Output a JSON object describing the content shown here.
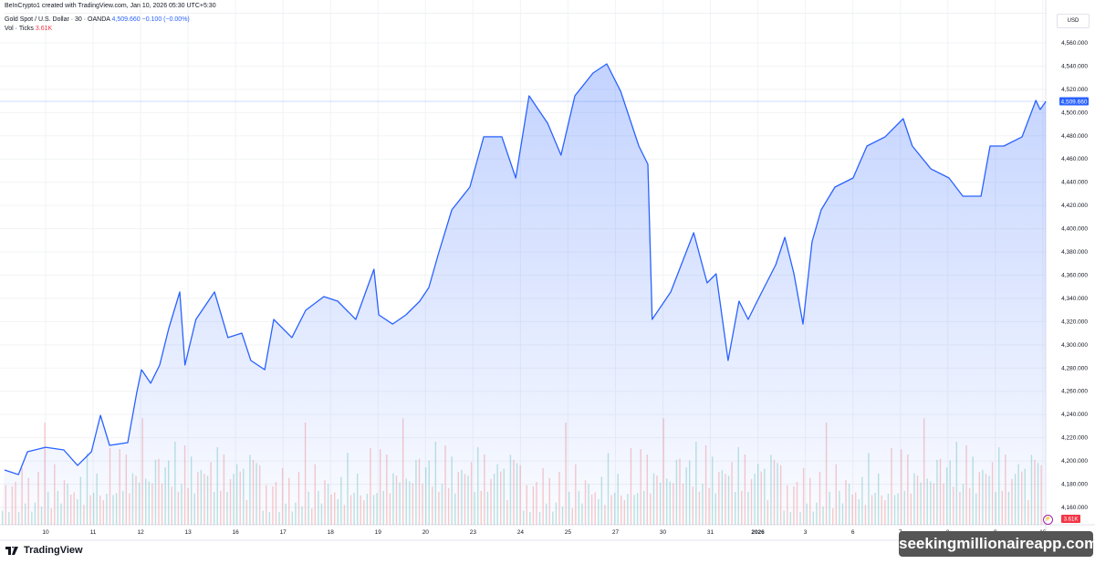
{
  "attribution": "BeInCrypto1 created with TradingView.com, Jan 10, 2026 05:30 UTC+5:30",
  "legend": {
    "symbol": "Gold Spot / U.S. Dollar · 30 · OANDA",
    "last": "4,509.660",
    "change": "−0.100 (−0.00%)",
    "vol_label": "Vol · Ticks",
    "vol_value": "3.61K"
  },
  "currency": "USD",
  "branding": "TradingView",
  "watermark": "seekingmillionaireapp.com",
  "colors": {
    "line": "#2962ff",
    "fill": "#2962ff",
    "vol_up": "#26a69a",
    "vol_down": "#ef5350",
    "last_price_bg": "#2962ff",
    "vol_badge_bg": "#f23645"
  },
  "chart_data": {
    "type": "area",
    "title": "Gold Spot / U.S. Dollar · 30 · OANDA",
    "ylabel": "USD",
    "ylim": [
      4150,
      4570
    ],
    "y_ticks": [
      "4,560.000",
      "4,540.000",
      "4,520.000",
      "4,500.000",
      "4,480.000",
      "4,460.000",
      "4,440.000",
      "4,420.000",
      "4,400.000",
      "4,380.000",
      "4,360.000",
      "4,340.000",
      "4,320.000",
      "4,300.000",
      "4,280.000",
      "4,260.000",
      "4,240.000",
      "4,220.000",
      "4,200.000",
      "4,180.000",
      "4,160.000"
    ],
    "y_tick_values": [
      4560,
      4540,
      4520,
      4500,
      4480,
      4460,
      4440,
      4420,
      4400,
      4380,
      4360,
      4340,
      4320,
      4300,
      4280,
      4260,
      4240,
      4220,
      4200,
      4180,
      4160
    ],
    "x_ticks": [
      "10",
      "11",
      "12",
      "13",
      "16",
      "17",
      "18",
      "19",
      "20",
      "23",
      "24",
      "25",
      "27",
      "30",
      "31",
      "2026",
      "3",
      "6",
      "7",
      "8",
      "9",
      "10"
    ],
    "last_price_label": "4,509.660",
    "last_volume_label": "3.61K",
    "grid": true,
    "price_points": [
      [
        -0.86,
        4192.2
      ],
      [
        -0.57,
        4188.3
      ],
      [
        -0.38,
        4207.9
      ],
      [
        0,
        4211.8
      ],
      [
        0.38,
        4209.5
      ],
      [
        0.67,
        4196.1
      ],
      [
        0.96,
        4207.9
      ],
      [
        1.15,
        4239.3
      ],
      [
        1.34,
        4213.4
      ],
      [
        1.72,
        4215.8
      ],
      [
        1.91,
        4259.0
      ],
      [
        2.01,
        4278.6
      ],
      [
        2.2,
        4266.9
      ],
      [
        2.39,
        4282.6
      ],
      [
        2.58,
        4314.0
      ],
      [
        2.81,
        4345.5
      ],
      [
        2.92,
        4282.6
      ],
      [
        3.15,
        4321.9
      ],
      [
        3.54,
        4345.5
      ],
      [
        3.82,
        4306.2
      ],
      [
        4.11,
        4310.1
      ],
      [
        4.3,
        4286.5
      ],
      [
        4.59,
        4278.6
      ],
      [
        4.78,
        4321.9
      ],
      [
        5.16,
        4306.2
      ],
      [
        5.45,
        4329.7
      ],
      [
        5.83,
        4341.5
      ],
      [
        6.12,
        4337.6
      ],
      [
        6.5,
        4321.9
      ],
      [
        6.88,
        4365.1
      ],
      [
        6.98,
        4325.8
      ],
      [
        7.27,
        4317.9
      ],
      [
        7.55,
        4325.8
      ],
      [
        7.84,
        4337.6
      ],
      [
        8.03,
        4349.4
      ],
      [
        8.22,
        4376.9
      ],
      [
        8.51,
        4416.2
      ],
      [
        8.89,
        4435.8
      ],
      [
        9.18,
        4479.1
      ],
      [
        9.56,
        4479.1
      ],
      [
        9.85,
        4443.7
      ],
      [
        10.13,
        4514.4
      ],
      [
        10.52,
        4490.8
      ],
      [
        10.8,
        4463.3
      ],
      [
        11.09,
        4514.4
      ],
      [
        11.47,
        4534.1
      ],
      [
        11.76,
        4541.9
      ],
      [
        12.05,
        4518.3
      ],
      [
        12.43,
        4471.2
      ],
      [
        12.62,
        4455.5
      ],
      [
        12.71,
        4321.9
      ],
      [
        13.1,
        4345.5
      ],
      [
        13.58,
        4396.5
      ],
      [
        13.86,
        4353.3
      ],
      [
        14.05,
        4361.2
      ],
      [
        14.3,
        4286.5
      ],
      [
        14.53,
        4337.6
      ],
      [
        14.72,
        4321.9
      ],
      [
        14.91,
        4337.6
      ],
      [
        15.3,
        4369.0
      ],
      [
        15.49,
        4392.6
      ],
      [
        15.68,
        4361.2
      ],
      [
        15.87,
        4317.9
      ],
      [
        16.06,
        4388.7
      ],
      [
        16.25,
        4416.2
      ],
      [
        16.54,
        4435.8
      ],
      [
        16.92,
        4443.7
      ],
      [
        17.21,
        4471.2
      ],
      [
        17.59,
        4479.1
      ],
      [
        17.97,
        4494.8
      ],
      [
        18.16,
        4471.2
      ],
      [
        18.55,
        4451.5
      ],
      [
        18.93,
        4443.7
      ],
      [
        19.22,
        4428.0
      ],
      [
        19.6,
        4428.0
      ],
      [
        19.79,
        4471.2
      ],
      [
        20.08,
        4471.2
      ],
      [
        20.46,
        4479.1
      ],
      [
        20.75,
        4510.5
      ],
      [
        20.84,
        4502.6
      ],
      [
        20.96,
        4509.66
      ]
    ],
    "volume_k": [
      1.2,
      2.1,
      0.9,
      1.8,
      2.6,
      1.1,
      3.0,
      1.5,
      2.2,
      0.8,
      1.9,
      2.8,
      1.3,
      4.8,
      2.0,
      1.4,
      3.2,
      2.4,
      1.0,
      2.7,
      3.5,
      1.6,
      2.3,
      1.2,
      2.9,
      1.7,
      3.8,
      2.1,
      1.5,
      3.1,
      2.5,
      1.3,
      2.2,
      3.6,
      1.8,
      2.7,
      4.0,
      2.4,
      3.3,
      1.9,
      4.4,
      2.6,
      3.0,
      5.0,
      2.8,
      3.7,
      2.2,
      4.6,
      3.1,
      2.5,
      4.9,
      3.4,
      2.7,
      3.9,
      2.0,
      3.5,
      4.2,
      2.6,
      3.2,
      1.9,
      4.5,
      2.9,
      3.6,
      2.3,
      3.8,
      2.8,
      4.1,
      2.4,
      3.3,
      2.0,
      3.9,
      2.7,
      4.3,
      2.5,
      3.4,
      2.1,
      3.7,
      4.6,
      2.9,
      3.61
    ],
    "volume_up": [
      1,
      0,
      1,
      0,
      0,
      1,
      0,
      1,
      0,
      1,
      1,
      0,
      1,
      0,
      1,
      0,
      0,
      1,
      1,
      0,
      1,
      0,
      0,
      1,
      1,
      0,
      1,
      0,
      1,
      1,
      0,
      0,
      1,
      0,
      1,
      1,
      0,
      1,
      0,
      0,
      1,
      0,
      1,
      0,
      1,
      1,
      0,
      1,
      0,
      0,
      1,
      1,
      0,
      1,
      0,
      1,
      0,
      0,
      1,
      1,
      0,
      1,
      0,
      1,
      0,
      1,
      1,
      0,
      0,
      1,
      0,
      1,
      1,
      0,
      1,
      0,
      1,
      0,
      1,
      0
    ]
  }
}
